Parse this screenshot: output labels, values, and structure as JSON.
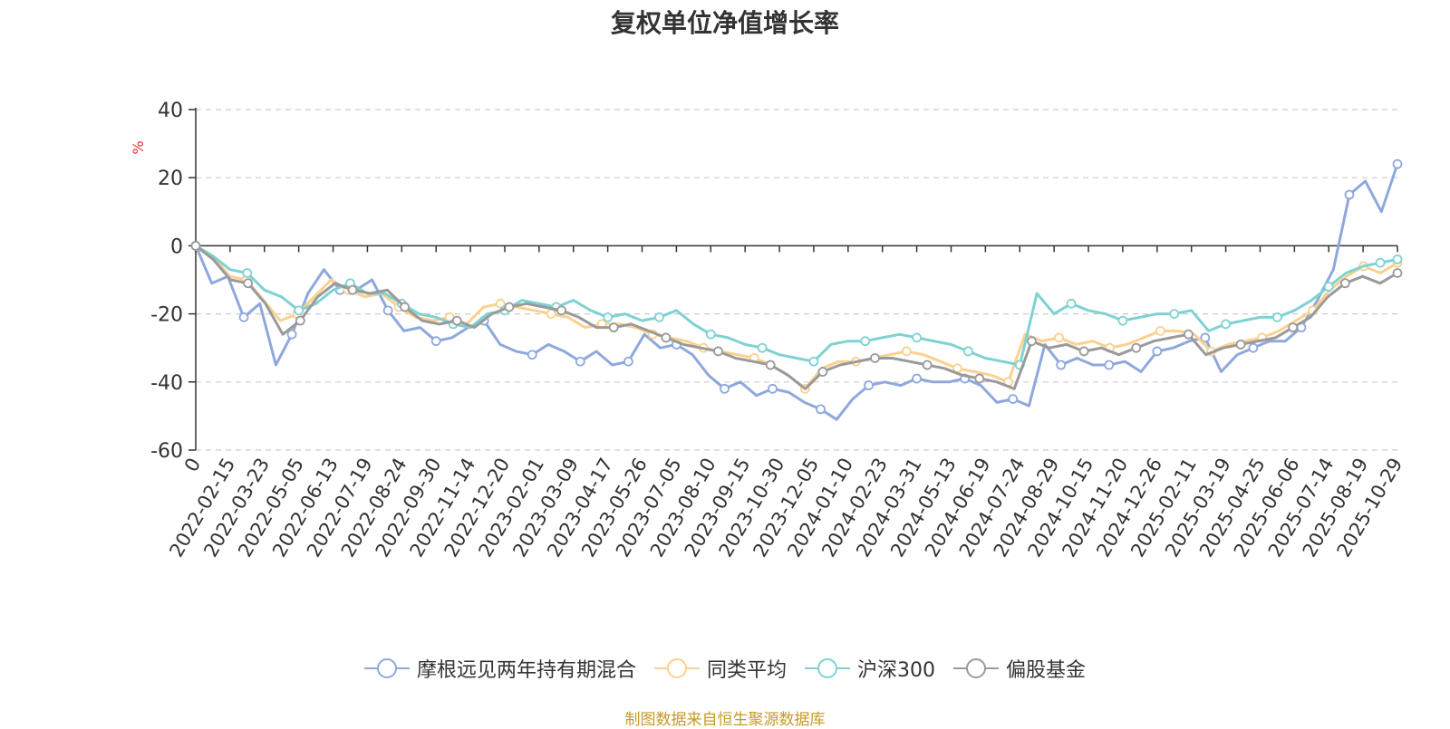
{
  "chart_data": {
    "type": "line",
    "title": "复权单位净值增长率",
    "ylabel": "%",
    "xlabel": "",
    "ylim": [
      -60,
      40
    ],
    "yticks": [
      40,
      20,
      0,
      -20,
      -40,
      -60
    ],
    "grid": true,
    "legend_position": "bottom",
    "xticks": [
      "0",
      "2022-02-15",
      "2022-03-23",
      "2022-05-05",
      "2022-06-13",
      "2022-07-19",
      "2022-08-24",
      "2022-09-30",
      "2022-11-14",
      "2022-12-20",
      "2023-02-01",
      "2023-03-09",
      "2023-04-17",
      "2023-05-26",
      "2023-07-05",
      "2023-08-10",
      "2023-09-15",
      "2023-10-30",
      "2023-12-05",
      "2024-01-10",
      "2024-02-23",
      "2024-03-31",
      "2024-05-13",
      "2024-06-19",
      "2024-07-24",
      "2024-08-29",
      "2024-10-15",
      "2024-11-20",
      "2024-12-26",
      "2025-02-11",
      "2025-03-19",
      "2025-04-25",
      "2025-06-06",
      "2025-07-14",
      "2025-08-19",
      "2025-10-29"
    ],
    "series": [
      {
        "name": "摩根远见两年持有期混合",
        "color": "#8fa8dc",
        "values": [
          0,
          -11,
          -9,
          -21,
          -17,
          -35,
          -26,
          -14,
          -7,
          -13,
          -13,
          -10,
          -19,
          -25,
          -24,
          -28,
          -27,
          -24,
          -22,
          -29,
          -31,
          -32,
          -29,
          -31,
          -34,
          -31,
          -35,
          -34,
          -26,
          -30,
          -29,
          -32,
          -38,
          -42,
          -40,
          -44,
          -42,
          -43,
          -46,
          -48,
          -51,
          -45,
          -41,
          -40,
          -41,
          -39,
          -40,
          -40,
          -39,
          -41,
          -46,
          -45,
          -47,
          -29,
          -35,
          -33,
          -35,
          -35,
          -34,
          -37,
          -31,
          -30,
          -28,
          -27,
          -37,
          -32,
          -30,
          -28,
          -28,
          -24,
          -16,
          -7,
          15,
          19,
          10,
          24
        ]
      },
      {
        "name": "同类平均",
        "color": "#fad18f",
        "values": [
          0,
          -3,
          -9,
          -10,
          -16,
          -22,
          -20,
          -15,
          -10,
          -13,
          -15,
          -14,
          -18,
          -21,
          -22,
          -21,
          -23,
          -18,
          -17,
          -18,
          -19,
          -20,
          -21,
          -24,
          -23,
          -23,
          -24,
          -26,
          -27,
          -28,
          -30,
          -31,
          -32,
          -33,
          -35,
          -38,
          -42,
          -36,
          -34,
          -34,
          -33,
          -32,
          -31,
          -32,
          -34,
          -36,
          -37,
          -38,
          -40,
          -26,
          -28,
          -27,
          -29,
          -28,
          -30,
          -29,
          -27,
          -25,
          -25,
          -26,
          -31,
          -29,
          -28,
          -27,
          -25,
          -22,
          -19,
          -13,
          -9,
          -6,
          -8,
          -5
        ]
      },
      {
        "name": "沪深300",
        "color": "#7fd2d2",
        "values": [
          0,
          -3,
          -7,
          -8,
          -13,
          -15,
          -19,
          -17,
          -13,
          -11,
          -14,
          -14,
          -17,
          -20,
          -21,
          -23,
          -24,
          -20,
          -19,
          -16,
          -17,
          -18,
          -16,
          -19,
          -21,
          -20,
          -22,
          -21,
          -19,
          -23,
          -26,
          -27,
          -29,
          -30,
          -32,
          -33,
          -34,
          -29,
          -28,
          -28,
          -27,
          -26,
          -27,
          -28,
          -29,
          -31,
          -33,
          -34,
          -35,
          -14,
          -20,
          -17,
          -19,
          -20,
          -22,
          -21,
          -20,
          -20,
          -19,
          -25,
          -23,
          -22,
          -21,
          -21,
          -19,
          -16,
          -12,
          -8,
          -6,
          -5,
          -4
        ]
      },
      {
        "name": "偏股基金",
        "color": "#9a9a9a",
        "values": [
          0,
          -4,
          -10,
          -11,
          -17,
          -26,
          -22,
          -15,
          -11,
          -13,
          -14,
          -13,
          -18,
          -22,
          -23,
          -22,
          -24,
          -20,
          -18,
          -17,
          -18,
          -19,
          -21,
          -24,
          -24,
          -23,
          -25,
          -27,
          -29,
          -30,
          -31,
          -33,
          -34,
          -35,
          -38,
          -42,
          -37,
          -35,
          -34,
          -33,
          -33,
          -34,
          -35,
          -36,
          -38,
          -39,
          -40,
          -42,
          -28,
          -30,
          -29,
          -31,
          -30,
          -32,
          -30,
          -28,
          -27,
          -26,
          -32,
          -30,
          -29,
          -28,
          -27,
          -24,
          -21,
          -15,
          -11,
          -9,
          -11,
          -8
        ]
      }
    ]
  },
  "legend_items": [
    "摩根远见两年持有期混合",
    "同类平均",
    "沪深300",
    "偏股基金"
  ],
  "source_text": "制图数据来自恒生聚源数据库"
}
